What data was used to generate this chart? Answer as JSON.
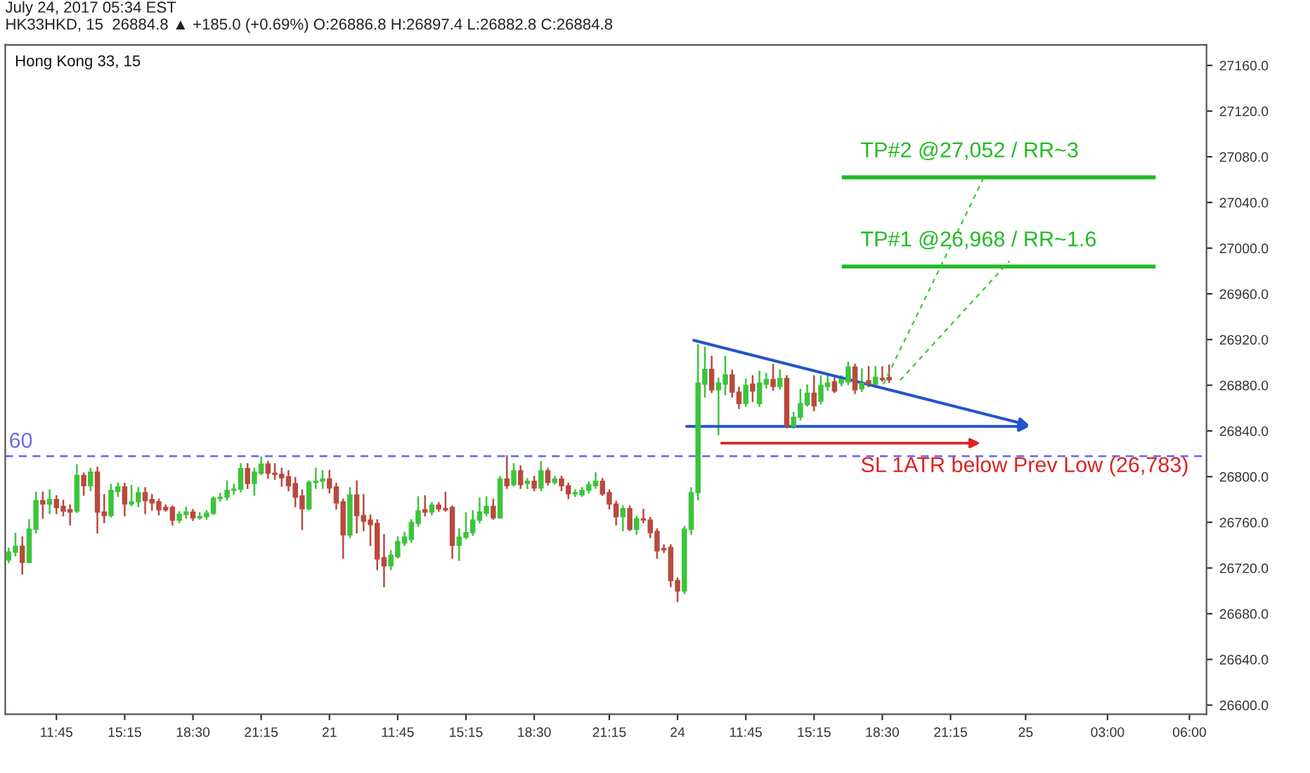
{
  "chart_data": {
    "type": "candlestick",
    "title": "Hong Kong 33, 15",
    "subtitle": "HK33HKD, 15  26884.8 ▲ +185.0 (+0.69%) O:26886.8 H:26897.4 L:26882.8 C:26884.8",
    "categories": [
      null,
      null,
      null,
      null,
      null,
      null,
      null,
      "11:45",
      null,
      null,
      null,
      null,
      null,
      null,
      null,
      null,
      null,
      "15:15",
      null,
      null,
      null,
      null,
      null,
      null,
      null,
      null,
      null,
      "18:30",
      null,
      null,
      null,
      null,
      null,
      null,
      null,
      null,
      null,
      "21:15",
      null,
      null,
      null,
      null,
      null,
      null,
      null,
      null,
      null,
      "21",
      null,
      null,
      null,
      null,
      null,
      null,
      null,
      null,
      null,
      "11:45",
      null,
      null,
      null,
      null,
      null,
      null,
      null,
      null,
      null,
      "15:15",
      null,
      null,
      null,
      null,
      null,
      null,
      null,
      null,
      null,
      "18:30",
      null,
      null,
      null,
      null,
      null,
      null,
      null,
      null,
      null,
      null,
      "21:15",
      null,
      null,
      null,
      null,
      null,
      null,
      null,
      null,
      null,
      "24",
      null,
      null,
      null,
      null,
      null,
      null,
      null,
      null,
      null,
      "11:45",
      null,
      null,
      null,
      null,
      null,
      null,
      null,
      null,
      null,
      "15:15",
      null,
      null,
      null,
      null,
      null,
      null,
      null,
      null,
      null,
      "18:30",
      null,
      null,
      null,
      null,
      null,
      null,
      null,
      null,
      null,
      "21:15",
      null,
      null,
      null,
      null,
      null,
      null,
      null,
      null,
      null,
      null,
      "25",
      null,
      null,
      null,
      null,
      null,
      null,
      null,
      null,
      null,
      null,
      null,
      "03:00",
      null,
      null,
      null,
      null,
      null,
      null,
      null,
      null,
      null,
      null,
      null,
      "06:00",
      null,
      null
    ],
    "ohlc": [
      [
        26727,
        26737,
        26725,
        26734
      ],
      [
        26734,
        26750,
        26731,
        26739
      ],
      [
        26739,
        26747,
        26715,
        26725
      ],
      [
        26725,
        26762,
        26725,
        26754
      ],
      [
        26754,
        26786,
        26751,
        26779
      ],
      [
        26779,
        26786,
        26764,
        26776
      ],
      [
        26776,
        26788,
        26768,
        26780
      ],
      [
        26780,
        26783,
        26768,
        26773
      ],
      [
        26774,
        26779,
        26766,
        26770
      ],
      [
        26771,
        26775,
        26758,
        26769
      ],
      [
        26770,
        26810,
        26769,
        26801
      ],
      [
        26801,
        26803,
        26784,
        26792
      ],
      [
        26792,
        26807,
        26788,
        26804
      ],
      [
        26804,
        26808,
        26751,
        26769
      ],
      [
        26769,
        26784,
        26760,
        26766
      ],
      [
        26766,
        26793,
        26765,
        26788
      ],
      [
        26787,
        26794,
        26783,
        26791
      ],
      [
        26791,
        26794,
        26766,
        26776
      ],
      [
        26776,
        26792,
        26775,
        26778
      ],
      [
        26778,
        26790,
        26774,
        26786
      ],
      [
        26786,
        26790,
        26768,
        26779
      ],
      [
        26780,
        26784,
        26771,
        26777
      ],
      [
        26778,
        26780,
        26767,
        26771
      ],
      [
        26773,
        26775,
        26770,
        26771
      ],
      [
        26773,
        26774,
        26758,
        26762
      ],
      [
        26762,
        26769,
        26760,
        26767
      ],
      [
        26767,
        26773,
        26764,
        26769
      ],
      [
        26769,
        26771,
        26762,
        26764
      ],
      [
        26764,
        26768,
        26763,
        26765
      ],
      [
        26765,
        26770,
        26763,
        26768
      ],
      [
        26768,
        26782,
        26767,
        26781
      ],
      [
        26781,
        26785,
        26779,
        26782
      ],
      [
        26782,
        26796,
        26780,
        26788
      ],
      [
        26788,
        26793,
        26785,
        26789
      ],
      [
        26789,
        26811,
        26787,
        26807
      ],
      [
        26807,
        26811,
        26790,
        26794
      ],
      [
        26794,
        26807,
        26784,
        26804
      ],
      [
        26803,
        26817,
        26802,
        26811
      ],
      [
        26811,
        26813,
        26799,
        26803
      ],
      [
        26803,
        26811,
        26798,
        26802
      ],
      [
        26802,
        26807,
        26792,
        26799
      ],
      [
        26800,
        26805,
        26788,
        26792
      ],
      [
        26794,
        26799,
        26774,
        26782
      ],
      [
        26783,
        26788,
        26754,
        26772
      ],
      [
        26772,
        26796,
        26771,
        26795
      ],
      [
        26795,
        26807,
        26790,
        26796
      ],
      [
        26796,
        26805,
        26790,
        26798
      ],
      [
        26798,
        26805,
        26786,
        26790
      ],
      [
        26791,
        26794,
        26772,
        26777
      ],
      [
        26778,
        26780,
        26729,
        26749
      ],
      [
        26749,
        26790,
        26747,
        26784
      ],
      [
        26784,
        26796,
        26751,
        26766
      ],
      [
        26766,
        26784,
        26753,
        26761
      ],
      [
        26762,
        26766,
        26740,
        26758
      ],
      [
        26759,
        26762,
        26719,
        26728
      ],
      [
        26729,
        26749,
        26704,
        26722
      ],
      [
        26722,
        26735,
        26719,
        26731
      ],
      [
        26730,
        26747,
        26729,
        26743
      ],
      [
        26742,
        26751,
        26740,
        26747
      ],
      [
        26745,
        26762,
        26743,
        26760
      ],
      [
        26759,
        26782,
        26757,
        26770
      ],
      [
        26771,
        26783,
        26766,
        26769
      ],
      [
        26769,
        26777,
        26767,
        26775
      ],
      [
        26775,
        26777,
        26770,
        26772
      ],
      [
        26772,
        26786,
        26770,
        26771
      ],
      [
        26773,
        26774,
        26729,
        26740
      ],
      [
        26740,
        26754,
        26727,
        26747
      ],
      [
        26747,
        26768,
        26746,
        26751
      ],
      [
        26751,
        26770,
        26749,
        26762
      ],
      [
        26762,
        26781,
        26760,
        26769
      ],
      [
        26768,
        26782,
        26766,
        26774
      ],
      [
        26774,
        26780,
        26763,
        26764
      ],
      [
        26764,
        26800,
        26764,
        26798
      ],
      [
        26798,
        26818,
        26790,
        26792
      ],
      [
        26793,
        26811,
        26792,
        26805
      ],
      [
        26805,
        26809,
        26790,
        26793
      ],
      [
        26794,
        26798,
        26790,
        26796
      ],
      [
        26796,
        26800,
        26788,
        26790
      ],
      [
        26790,
        26813,
        26788,
        26805
      ],
      [
        26805,
        26807,
        26793,
        26795
      ],
      [
        26795,
        26800,
        26794,
        26798
      ],
      [
        26798,
        26800,
        26788,
        26792
      ],
      [
        26792,
        26794,
        26781,
        26785
      ],
      [
        26785,
        26788,
        26783,
        26786
      ],
      [
        26784,
        26790,
        26783,
        26788
      ],
      [
        26788,
        26795,
        26786,
        26793
      ],
      [
        26792,
        26803,
        26790,
        26796
      ],
      [
        26796,
        26798,
        26784,
        26785
      ],
      [
        26786,
        26788,
        26772,
        26776
      ],
      [
        26776,
        26778,
        26758,
        26765
      ],
      [
        26765,
        26774,
        26753,
        26772
      ],
      [
        26772,
        26774,
        26753,
        26754
      ],
      [
        26754,
        26765,
        26750,
        26763
      ],
      [
        26763,
        26771,
        26760,
        26762
      ],
      [
        26762,
        26764,
        26747,
        26751
      ],
      [
        26752,
        26754,
        26729,
        26735
      ],
      [
        26737,
        26740,
        26734,
        26736
      ],
      [
        26738,
        26740,
        26704,
        26709
      ],
      [
        26709,
        26711,
        26691,
        26700
      ],
      [
        26700,
        26756,
        26698,
        26754
      ],
      [
        26754,
        26790,
        26750,
        26786
      ],
      [
        26786,
        26915,
        26780,
        26882
      ],
      [
        26881,
        26913,
        26870,
        26894
      ],
      [
        26894,
        26905,
        26874,
        26876
      ],
      [
        26876,
        26886,
        26837,
        26882
      ],
      [
        26881,
        26905,
        26872,
        26889
      ],
      [
        26889,
        26893,
        26870,
        26874
      ],
      [
        26874,
        26878,
        26860,
        26864
      ],
      [
        26864,
        26885,
        26862,
        26880
      ],
      [
        26881,
        26888,
        26866,
        26875
      ],
      [
        26864,
        26892,
        26862,
        26882
      ],
      [
        26881,
        26890,
        26878,
        26885
      ],
      [
        26885,
        26898,
        26876,
        26879
      ],
      [
        26879,
        26893,
        26877,
        26886
      ],
      [
        26886,
        26888,
        26843,
        26844
      ],
      [
        26844,
        26856,
        26843,
        26852
      ],
      [
        26852,
        26876,
        26850,
        26864
      ],
      [
        26863,
        26880,
        26862,
        26873
      ],
      [
        26873,
        26888,
        26858,
        26862
      ],
      [
        26866,
        26888,
        26864,
        26880
      ],
      [
        26879,
        26888,
        26876,
        26882
      ],
      [
        26883,
        26888,
        26874,
        26875
      ],
      [
        26882,
        26888,
        26880,
        26885
      ],
      [
        26883,
        26900,
        26881,
        26896
      ],
      [
        26896,
        26898,
        26873,
        26876
      ],
      [
        26877,
        26894,
        26875,
        26882
      ],
      [
        26884,
        26896,
        26879,
        26881
      ],
      [
        26881,
        26896,
        26880,
        26887
      ],
      [
        26886,
        26896,
        26884,
        26885
      ],
      [
        26886.8,
        26897.4,
        26882.8,
        26884.8
      ],
      null,
      null,
      null,
      null,
      null,
      null,
      null,
      null,
      null,
      null,
      null,
      null,
      null,
      null,
      null,
      null,
      null,
      null,
      null,
      null,
      null,
      null,
      null,
      null,
      null,
      null,
      null,
      null,
      null,
      null,
      null,
      null,
      null,
      null,
      null,
      null,
      null,
      null,
      null,
      null,
      null,
      null,
      null,
      null,
      null,
      null
    ],
    "colors": [
      "#3cc43c",
      "#3cc43c",
      "#b84a3e",
      "#3cc43c",
      "#3cc43c",
      "#b84a3e",
      "#3cc43c",
      "#b84a3e",
      "#b84a3e",
      "#b84a3e",
      "#3cc43c",
      "#b84a3e",
      "#3cc43c",
      "#b84a3e",
      "#b84a3e",
      "#3cc43c",
      "#3cc43c",
      "#b84a3e",
      "#3cc43c",
      "#3cc43c",
      "#b84a3e",
      "#b84a3e",
      "#b84a3e",
      "#b84a3e",
      "#b84a3e",
      "#3cc43c",
      "#3cc43c",
      "#b84a3e",
      "#3cc43c",
      "#3cc43c",
      "#3cc43c",
      "#3cc43c",
      "#3cc43c",
      "#3cc43c",
      "#3cc43c",
      "#b84a3e",
      "#3cc43c",
      "#3cc43c",
      "#b84a3e",
      "#b84a3e",
      "#b84a3e",
      "#b84a3e",
      "#b84a3e",
      "#b84a3e",
      "#3cc43c",
      "#3cc43c",
      "#3cc43c",
      "#b84a3e",
      "#b84a3e",
      "#b84a3e",
      "#3cc43c",
      "#b84a3e",
      "#b84a3e",
      "#b84a3e",
      "#b84a3e",
      "#b84a3e",
      "#3cc43c",
      "#3cc43c",
      "#3cc43c",
      "#3cc43c",
      "#3cc43c",
      "#b84a3e",
      "#3cc43c",
      "#b84a3e",
      "#b84a3e",
      "#b84a3e",
      "#3cc43c",
      "#3cc43c",
      "#3cc43c",
      "#3cc43c",
      "#3cc43c",
      "#b84a3e",
      "#3cc43c",
      "#b84a3e",
      "#3cc43c",
      "#b84a3e",
      "#3cc43c",
      "#b84a3e",
      "#3cc43c",
      "#b84a3e",
      "#3cc43c",
      "#b84a3e",
      "#b84a3e",
      "#3cc43c",
      "#3cc43c",
      "#3cc43c",
      "#3cc43c",
      "#b84a3e",
      "#b84a3e",
      "#b84a3e",
      "#3cc43c",
      "#b84a3e",
      "#3cc43c",
      "#b84a3e",
      "#b84a3e",
      "#b84a3e",
      "#b84a3e",
      "#b84a3e",
      "#b84a3e",
      "#3cc43c",
      "#3cc43c",
      "#3cc43c",
      "#3cc43c",
      "#b84a3e",
      "#3cc43c",
      "#3cc43c",
      "#b84a3e",
      "#b84a3e",
      "#3cc43c",
      "#b84a3e",
      "#3cc43c",
      "#3cc43c",
      "#b84a3e",
      "#3cc43c",
      "#b84a3e",
      "#3cc43c",
      "#3cc43c",
      "#3cc43c",
      "#b84a3e",
      "#3cc43c",
      "#3cc43c",
      "#b84a3e",
      "#3cc43c",
      "#3cc43c",
      "#b84a3e",
      "#3cc43c",
      "#b84a3e",
      "#3cc43c",
      "#b84a3e",
      "#b84a3e",
      null,
      null,
      null,
      null,
      null,
      null,
      null,
      null,
      null,
      null,
      null,
      null,
      null,
      null,
      null,
      null,
      null,
      null,
      null,
      null,
      null,
      null,
      null,
      null,
      null,
      null,
      null,
      null,
      null,
      null,
      null,
      null,
      null,
      null,
      null,
      null,
      null,
      null,
      null,
      null,
      null,
      null,
      null,
      null,
      null,
      null
    ],
    "ylim": [
      26592,
      27178
    ],
    "yticks": [
      {
        "value": 26600,
        "label": "26600.0"
      },
      {
        "value": 26640,
        "label": "26640.0"
      },
      {
        "value": 26680,
        "label": "26680.0"
      },
      {
        "value": 26720,
        "label": "26720.0"
      },
      {
        "value": 26760,
        "label": "26760.0"
      },
      {
        "value": 26800,
        "label": "26800.0"
      },
      {
        "value": 26840,
        "label": "26840.0"
      },
      {
        "value": 26880,
        "label": "26880.0"
      },
      {
        "value": 26920,
        "label": "26920.0"
      },
      {
        "value": 26960,
        "label": "26960.0"
      },
      {
        "value": 27000,
        "label": "27000.0"
      },
      {
        "value": 27040,
        "label": "27040.0"
      },
      {
        "value": 27080,
        "label": "27080.0"
      },
      {
        "value": 27120,
        "label": "27120.0"
      },
      {
        "value": 27160,
        "label": "27160.0"
      }
    ],
    "ref_lines": [
      {
        "axis": "y",
        "value": 26818,
        "color": "#6b6bf0",
        "line_style": "dashed"
      },
      {
        "axis": "y",
        "value": 27062,
        "label": "TP#2 @27,052 / RR~3",
        "color": "#22bb22"
      },
      {
        "axis": "y",
        "value": 26984,
        "label": "TP#1 @26,968 / RR~1.6",
        "color": "#22bb22"
      }
    ],
    "annotations": [
      "July 24, 2017 05:34 EST",
      "60",
      "SL 1ATR below Prev Low (26,783)"
    ]
  }
}
